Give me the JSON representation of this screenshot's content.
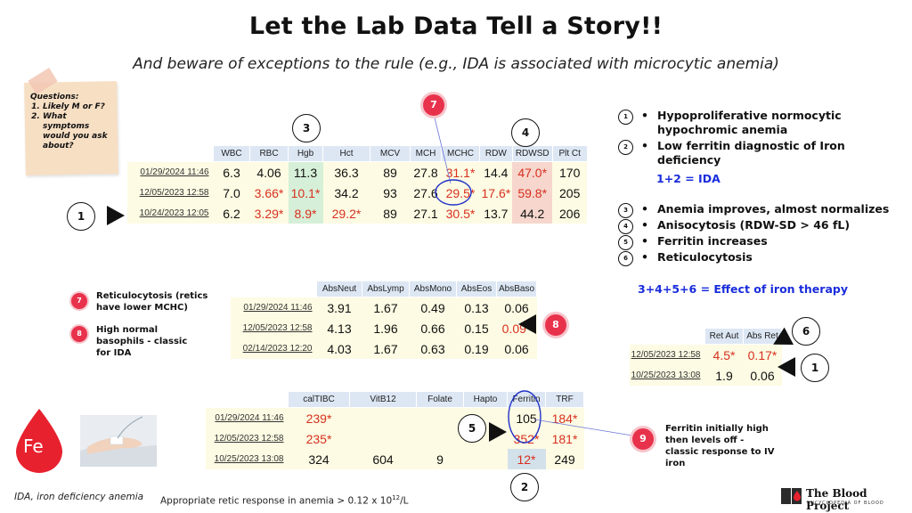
{
  "title": "Let the Lab Data Tell a Story!!",
  "subtitle": "And beware of exceptions to the rule (e.g., IDA is associated with microcytic anemia)",
  "sticky": {
    "heading": "Questions:",
    "items": [
      "Likely M or F?",
      "What symptoms would you ask about?"
    ]
  },
  "cbc_table": {
    "headers": [
      "WBC",
      "RBC",
      "Hgb",
      "Hct",
      "MCV",
      "MCH",
      "MCHC",
      "RDW",
      "RDWSD",
      "Plt Ct"
    ],
    "rows": [
      {
        "date": "01/29/2024 11:46",
        "values": [
          "6.3",
          "4.06",
          "11.3",
          "36.3",
          "89",
          "27.8",
          "31.1*",
          "14.4",
          "47.0*",
          "170"
        ]
      },
      {
        "date": "12/05/2023 12:58",
        "values": [
          "7.0",
          "3.66*",
          "10.1*",
          "34.2",
          "93",
          "27.6",
          "29.5*",
          "17.6*",
          "59.8*",
          "205"
        ]
      },
      {
        "date": "10/24/2023 12:05",
        "values": [
          "6.2",
          "3.29*",
          "8.9*",
          "29.2*",
          "89",
          "27.1",
          "30.5*",
          "13.7",
          "44.2",
          "206"
        ]
      }
    ]
  },
  "diff_table": {
    "headers": [
      "AbsNeut",
      "AbsLymp",
      "AbsMono",
      "AbsEos",
      "AbsBaso"
    ],
    "rows": [
      {
        "date": "01/29/2024 11:46",
        "values": [
          "3.91",
          "1.67",
          "0.49",
          "0.13",
          "0.06"
        ]
      },
      {
        "date": "12/05/2023 12:58",
        "values": [
          "4.13",
          "1.96",
          "0.66",
          "0.15",
          "0.09*"
        ]
      },
      {
        "date": "02/14/2023 12:20",
        "values": [
          "4.03",
          "1.67",
          "0.63",
          "0.19",
          "0.06"
        ]
      }
    ]
  },
  "retic_table": {
    "headers": [
      "Ret Aut",
      "Abs Ret"
    ],
    "rows": [
      {
        "date": "12/05/2023 12:58",
        "values": [
          "4.5*",
          "0.17*"
        ]
      },
      {
        "date": "10/25/2023 13:08",
        "values": [
          "1.9",
          "0.06"
        ]
      }
    ]
  },
  "iron_table": {
    "headers": [
      "calTIBC",
      "VitB12",
      "Folate",
      "Hapto",
      "Ferritin",
      "TRF"
    ],
    "rows": [
      {
        "date": "01/29/2024 11:46",
        "values": [
          "239*",
          "",
          "",
          "",
          "105",
          "184*"
        ]
      },
      {
        "date": "12/05/2023 12:58",
        "values": [
          "235*",
          "",
          "",
          "",
          "352*",
          "181*"
        ]
      },
      {
        "date": "10/25/2023 13:08",
        "values": [
          "324",
          "604",
          "9",
          "",
          "12*",
          "249"
        ]
      }
    ]
  },
  "markers": {
    "n1": "1",
    "n2": "2",
    "n3": "3",
    "n4": "4",
    "n5": "5",
    "n6": "6",
    "n7": "7",
    "n8": "8",
    "n9": "9"
  },
  "notes": [
    {
      "num": "1",
      "text": "Hypoproliferative normocytic hypochromic anemia"
    },
    {
      "num": "2",
      "text": "Low ferritin diagnostic of Iron deficiency"
    },
    {
      "num": "3",
      "text": "Anemia improves, almost normalizes"
    },
    {
      "num": "4",
      "text": "Anisocytosis (RDW-SD > 46 fL)"
    },
    {
      "num": "5",
      "text": "Ferritin increases"
    },
    {
      "num": "6",
      "text": "Reticulocytosis"
    }
  ],
  "eq1": "1+2 = IDA",
  "eq2": "3+4+5+6 = Effect of iron therapy",
  "pin_notes": {
    "n7": "Reticulocytosis (retics have lower MCHC)",
    "n8": "High normal basophils - classic for IDA",
    "n9": "Ferritin initially high then levels off - classic response to IV iron"
  },
  "fe_label": "Fe",
  "footer_abbrev": "IDA, iron deficiency anemia",
  "footer_retic": "Appropriate retic response in anemia > 0.12 x 10",
  "footer_retic_sup": "12",
  "footer_retic_unit": "/L",
  "logo": {
    "name": "The Blood Project",
    "tagline": "ENCYCLOPEDIA OF BLOOD"
  },
  "colors": {
    "flag": "#d7301f",
    "pin": "#e8324c",
    "equation": "#1a2ddb"
  }
}
